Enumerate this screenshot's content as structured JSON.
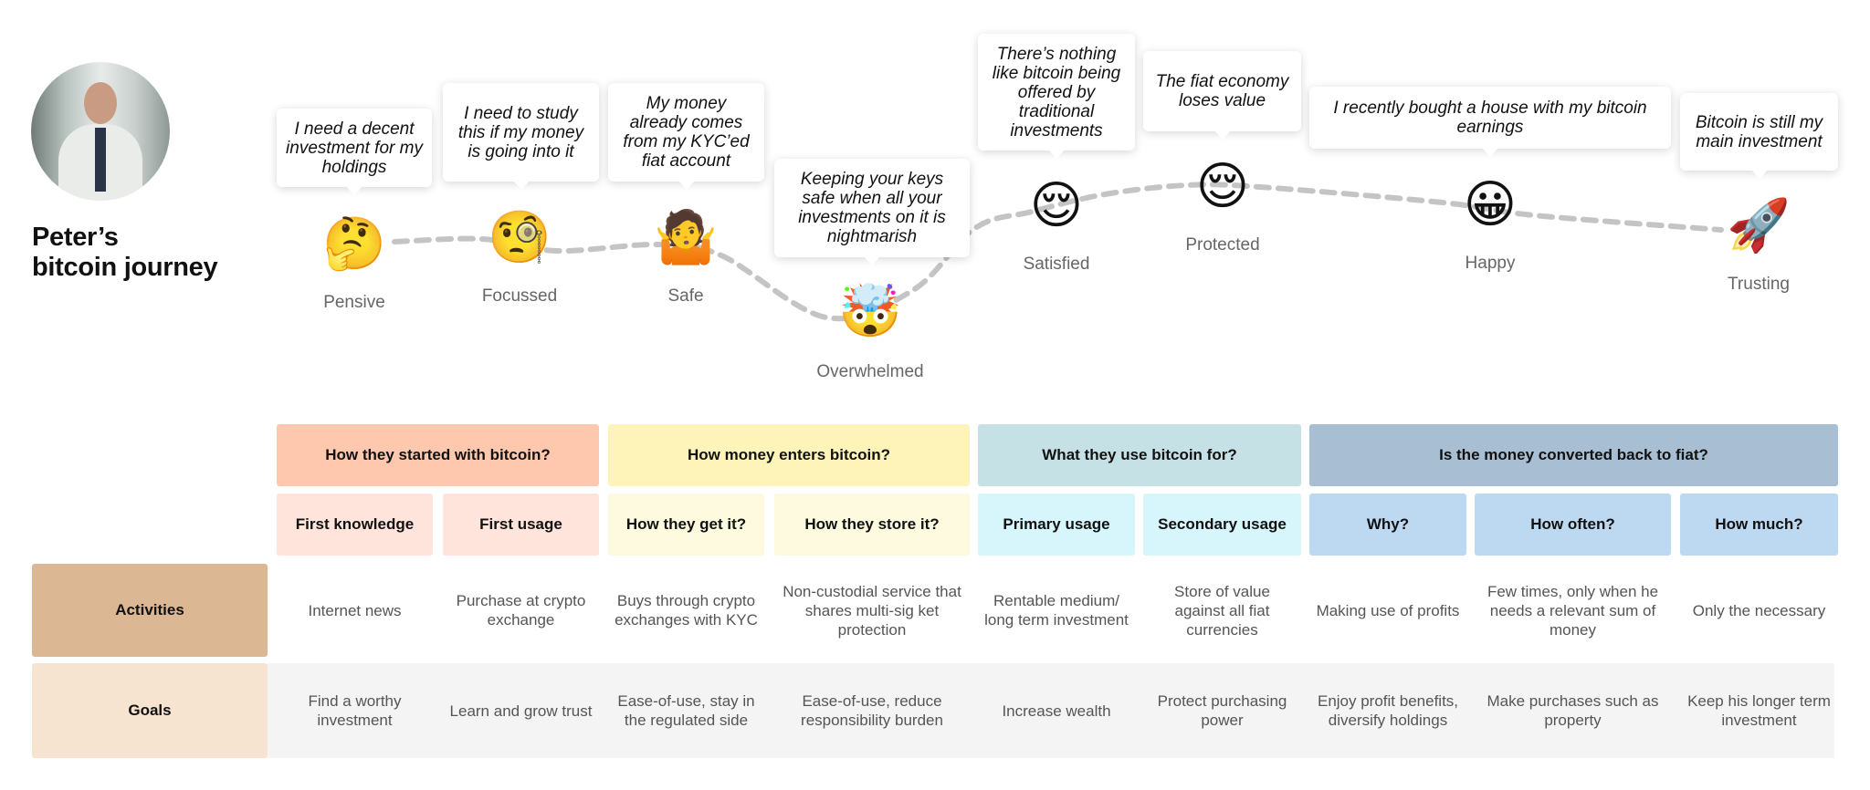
{
  "title": "Peter’s bitcoin journey",
  "title_lines": [
    "Peter’s",
    "bitcoin journey"
  ],
  "journey": [
    {
      "emotion": "Pensive",
      "emoji": "🤔",
      "icon": "thinking-face-icon",
      "quote": "I need a decent investment for my holdings"
    },
    {
      "emotion": "Focussed",
      "emoji": "🧐",
      "icon": "monocle-face-icon",
      "quote": "I need to study this if my money is going into it"
    },
    {
      "emotion": "Safe",
      "emoji": "🤷",
      "icon": "person-shrugging-icon",
      "quote": "My money already comes from my KYC’ed fiat account"
    },
    {
      "emotion": "Overwhelmed",
      "emoji": "🤯",
      "icon": "exploding-head-icon",
      "quote": "Keeping your keys safe when all your investments on it is nightmarish"
    },
    {
      "emotion": "Satisfied",
      "emoji": "😌",
      "icon": "relieved-face-icon",
      "quote": "There’s nothing like bitcoin being offered by traditional investments"
    },
    {
      "emotion": "Protected",
      "emoji": "😌",
      "icon": "relieved-face-icon",
      "quote": "The fiat economy loses value"
    },
    {
      "emotion": "Happy",
      "emoji": "😀",
      "icon": "grinning-face-icon",
      "quote": "I recently bought a house with my bitcoin earnings"
    },
    {
      "emotion": "Trusting",
      "emoji": "🚀",
      "icon": "rocket-icon",
      "quote": "Bitcoin is still my main investment"
    }
  ],
  "categories": [
    {
      "label": "How they started with bitcoin?",
      "color": "#fdc8ae",
      "sub_color": "#fee4da"
    },
    {
      "label": "How money enters bitcoin?",
      "color": "#fef3b9",
      "sub_color": "#fefae0"
    },
    {
      "label": "What they use bitcoin for?",
      "color": "#c5e1e6",
      "sub_color": "#d6f6fc"
    },
    {
      "label": "Is the money converted back to fiat?",
      "color": "#a8bed3",
      "sub_color": "#bdd8f1"
    }
  ],
  "subheaders": [
    "First knowledge",
    "First usage",
    "How they get it?",
    "How they store it?",
    "Primary usage",
    "Secondary usage",
    "Why?",
    "How often?",
    "How much?"
  ],
  "rows": [
    {
      "label": "Activities",
      "color": "#dbb893",
      "cells": [
        "Internet news",
        "Purchase at crypto exchange",
        "Buys through crypto exchanges with KYC",
        "Non-custodial service that shares multi-sig ket protection",
        "Rentable medium/ long term investment",
        "Store of value against all fiat currencies",
        "Making use of profits",
        "Few times, only when he needs a relevant sum of money",
        "Only the necessary"
      ]
    },
    {
      "label": "Goals",
      "color": "#f6e3d0",
      "cells": [
        "Find a worthy investment",
        "Learn and grow trust",
        "Ease-of-use, stay in the regulated side",
        "Ease-of-use, reduce responsibility burden",
        "Increase wealth",
        "Protect purchasing power",
        "Enjoy profit benefits, diversify holdings",
        "Make purchases such as property",
        "Keep his longer term investment"
      ]
    }
  ],
  "colors": {
    "curve": "#c4c4c4",
    "goals_bg": "#f4f4f4",
    "label_text": "#666666"
  }
}
